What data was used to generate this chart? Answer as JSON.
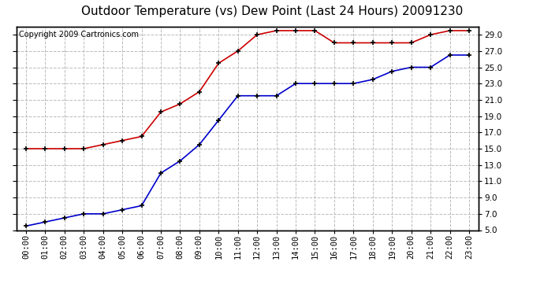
{
  "title": "Outdoor Temperature (vs) Dew Point (Last 24 Hours) 20091230",
  "copyright_text": "Copyright 2009 Cartronics.com",
  "hours": [
    0,
    1,
    2,
    3,
    4,
    5,
    6,
    7,
    8,
    9,
    10,
    11,
    12,
    13,
    14,
    15,
    16,
    17,
    18,
    19,
    20,
    21,
    22,
    23
  ],
  "temp": [
    15.0,
    15.0,
    15.0,
    15.0,
    15.5,
    16.0,
    16.5,
    19.5,
    20.5,
    22.0,
    25.5,
    27.0,
    29.0,
    29.5,
    29.5,
    29.5,
    28.0,
    28.0,
    28.0,
    28.0,
    28.0,
    29.0,
    29.5,
    29.5
  ],
  "dewpoint": [
    5.5,
    6.0,
    6.5,
    7.0,
    7.0,
    7.5,
    8.0,
    12.0,
    13.5,
    15.5,
    18.5,
    21.5,
    21.5,
    21.5,
    23.0,
    23.0,
    23.0,
    23.0,
    23.5,
    24.5,
    25.0,
    25.0,
    26.5,
    26.5
  ],
  "temp_color": "#cc0000",
  "dewpoint_color": "#0000cc",
  "marker": "+",
  "marker_color": "black",
  "ylim_min": 5.0,
  "ylim_max": 30.0,
  "yticks": [
    5.0,
    7.0,
    9.0,
    11.0,
    13.0,
    15.0,
    17.0,
    19.0,
    21.0,
    23.0,
    25.0,
    27.0,
    29.0
  ],
  "background_color": "#ffffff",
  "grid_color": "#bbbbbb",
  "title_fontsize": 11,
  "tick_fontsize": 7.5,
  "copyright_fontsize": 7,
  "figsize": [
    6.9,
    3.75
  ],
  "dpi": 100
}
